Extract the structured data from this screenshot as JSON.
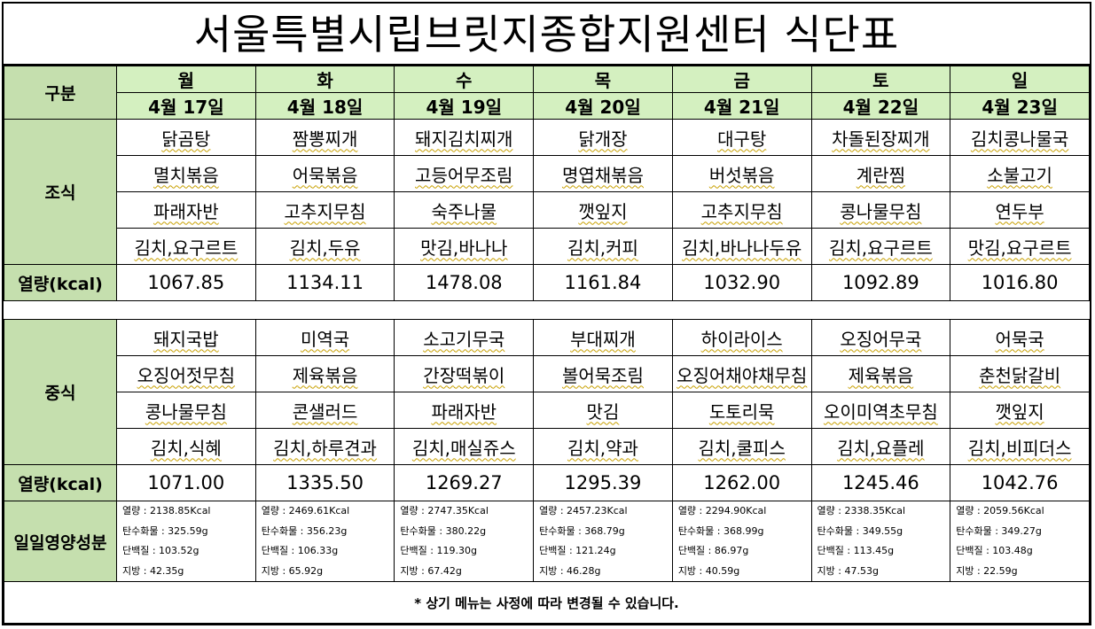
{
  "title": "서울특별시립브릿지종합지원센터  식단표",
  "header": {
    "label": "구분"
  },
  "days": [
    {
      "name": "월",
      "date": "4월 17일"
    },
    {
      "name": "화",
      "date": "4월 18일"
    },
    {
      "name": "수",
      "date": "4월 19일"
    },
    {
      "name": "목",
      "date": "4월 20일"
    },
    {
      "name": "금",
      "date": "4월 21일"
    },
    {
      "name": "토",
      "date": "4월 22일"
    },
    {
      "name": "일",
      "date": "4월 23일"
    }
  ],
  "breakfast": {
    "label": "조식",
    "rows": [
      [
        "닭곰탕",
        "짬뽕찌개",
        "돼지김치찌개",
        "닭개장",
        "대구탕",
        "차돌된장찌개",
        "김치콩나물국"
      ],
      [
        "멸치볶음",
        "어묵볶음",
        "고등어무조림",
        "명엽채볶음",
        "버섯볶음",
        "계란찜",
        "소불고기"
      ],
      [
        "파래자반",
        "고추지무침",
        "숙주나물",
        "깻잎지",
        "고추지무침",
        "콩나물무침",
        "연두부"
      ],
      [
        "김치,요구르트",
        "김치,두유",
        "맛김,바나나",
        "김치,커피",
        "김치,바나나두유",
        "김치,요구르트",
        "맛김,요구르트"
      ]
    ],
    "kcal_label": "열량(kcal)",
    "kcal": [
      "1067.85",
      "1134.11",
      "1478.08",
      "1161.84",
      "1032.90",
      "1092.89",
      "1016.80"
    ]
  },
  "lunch": {
    "label": "중식",
    "rows": [
      [
        "돼지국밥",
        "미역국",
        "소고기무국",
        "부대찌개",
        "하이라이스",
        "오징어무국",
        "어묵국"
      ],
      [
        "오징어젓무침",
        "제육볶음",
        "간장떡볶이",
        "볼어묵조림",
        "오징어채야채무침",
        "제육볶음",
        "춘천닭갈비"
      ],
      [
        "콩나물무침",
        "콘샐러드",
        "파래자반",
        "맛김",
        "도토리묵",
        "오이미역초무침",
        "깻잎지"
      ],
      [
        "김치,식혜",
        "김치,하루견과",
        "김치,매실쥬스",
        "김치,약과",
        "김치,쿨피스",
        "김치,요플레",
        "김치,비피더스"
      ]
    ],
    "kcal_label": "열량(kcal)",
    "kcal": [
      "1071.00",
      "1335.50",
      "1269.27",
      "1295.39",
      "1262.00",
      "1245.46",
      "1042.76"
    ]
  },
  "nutrition": {
    "label": "일일영양성분",
    "days": [
      [
        "열량 : 2138.85Kcal",
        "탄수화물 : 325.59g",
        "단백질 : 103.52g",
        "지방 : 42.35g"
      ],
      [
        "열량 : 2469.61Kcal",
        "탄수화물 : 356.23g",
        "단백질 : 106.33g",
        "지방 : 65.92g"
      ],
      [
        "열량 : 2747.35Kcal",
        "탄수화물 : 380.22g",
        "단백질 : 119.30g",
        "지방 : 67.42g"
      ],
      [
        "열량 : 2457.23Kcal",
        "탄수화물 : 368.79g",
        "단백질 : 121.24g",
        "지방 : 46.28g"
      ],
      [
        "열량 : 2294.90Kcal",
        "탄수화물 : 368.99g",
        "단백질 : 86.97g",
        "지방 : 40.59g"
      ],
      [
        "열량 : 2338.35Kcal",
        "탄수화물 : 349.55g",
        "단백질 : 113.45g",
        "지방 : 47.53g"
      ],
      [
        "열량 : 2059.56Kcal",
        "탄수화물 : 349.27g",
        "단백질 : 103.48g",
        "지방 : 22.59g"
      ]
    ]
  },
  "footer": "* 상기 메뉴는 사정에 따라 변경될 수 있습니다."
}
